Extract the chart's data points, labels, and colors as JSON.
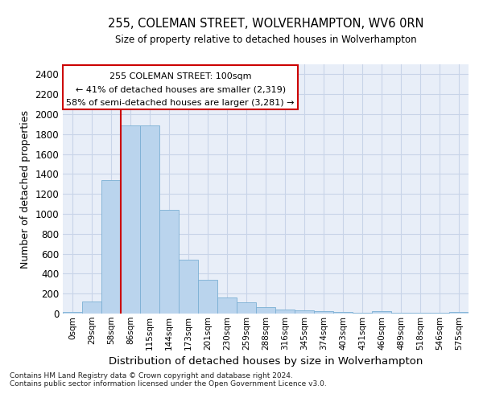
{
  "title": "255, COLEMAN STREET, WOLVERHAMPTON, WV6 0RN",
  "subtitle": "Size of property relative to detached houses in Wolverhampton",
  "xlabel": "Distribution of detached houses by size in Wolverhampton",
  "ylabel": "Number of detached properties",
  "footnote1": "Contains HM Land Registry data © Crown copyright and database right 2024.",
  "footnote2": "Contains public sector information licensed under the Open Government Licence v3.0.",
  "annotation_line1": "255 COLEMAN STREET: 100sqm",
  "annotation_line2": "← 41% of detached houses are smaller (2,319)",
  "annotation_line3": "58% of semi-detached houses are larger (3,281) →",
  "bar_values": [
    15,
    120,
    1340,
    1890,
    1890,
    1040,
    540,
    340,
    160,
    110,
    65,
    40,
    30,
    25,
    20,
    5,
    25,
    5,
    5,
    5,
    15
  ],
  "bar_color": "#bad4ed",
  "bar_edge_color": "#7bafd4",
  "tick_labels": [
    "0sqm",
    "29sqm",
    "58sqm",
    "86sqm",
    "115sqm",
    "144sqm",
    "173sqm",
    "201sqm",
    "230sqm",
    "259sqm",
    "288sqm",
    "316sqm",
    "345sqm",
    "374sqm",
    "403sqm",
    "431sqm",
    "460sqm",
    "489sqm",
    "518sqm",
    "546sqm",
    "575sqm"
  ],
  "ylim": [
    0,
    2500
  ],
  "yticks": [
    0,
    200,
    400,
    600,
    800,
    1000,
    1200,
    1400,
    1600,
    1800,
    2000,
    2200,
    2400
  ],
  "vline_x": 3.0,
  "vline_color": "#cc0000",
  "background_color": "#ffffff",
  "grid_color": "#c8d4e8",
  "axes_background": "#e8eef8"
}
